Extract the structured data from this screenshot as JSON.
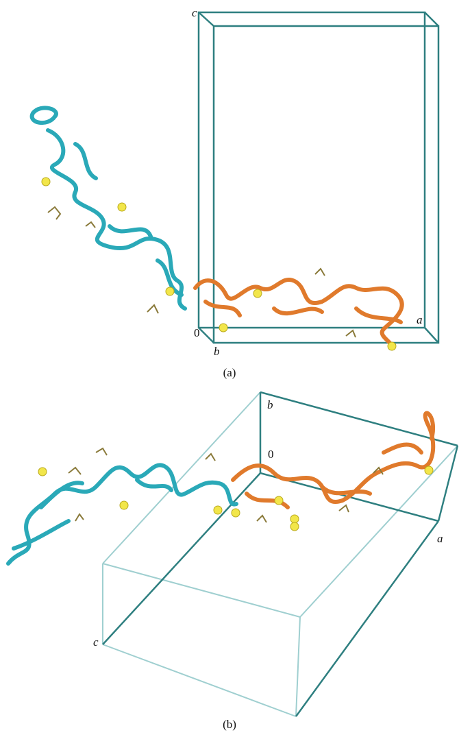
{
  "panels": [
    {
      "label": "(a)",
      "axes": {
        "c": "c",
        "origin": "0",
        "b": "b",
        "a": "a"
      }
    },
    {
      "label": "(b)",
      "axes": {
        "b": "b",
        "origin": "0",
        "a": "a",
        "c": "c"
      }
    }
  ]
}
